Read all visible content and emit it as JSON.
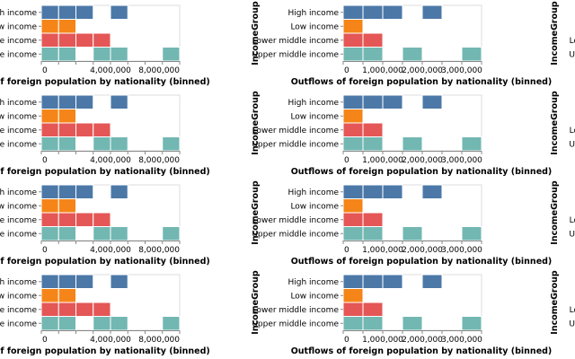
{
  "colors": {
    "High income": "#4c78a8",
    "Low income": "#f58518",
    "Lower middle income": "#e45756",
    "Upper middle income": "#72b7b2"
  },
  "chart_data": [
    {
      "type": "bar",
      "subtype": "binned-strip",
      "repeat_rows": 4,
      "xlabel": "Inflows of foreign population by nationality (binned)",
      "ylabel": "IncomeGroup",
      "categories": [
        "High income",
        "Low income",
        "Lower middle income",
        "Upper middle income"
      ],
      "xlim": [
        0,
        8000000
      ],
      "bin_step": 1000000,
      "xticks": [
        0,
        1000000,
        2000000,
        3000000,
        4000000,
        5000000,
        6000000,
        7000000,
        8000000
      ],
      "xtick_labels": [
        "0",
        "4,000,000",
        "8,000,000"
      ],
      "xtick_label_values": [
        0,
        4000000,
        8000000
      ],
      "bins": {
        "High income": [
          [
            0,
            1000000
          ],
          [
            1000000,
            2000000
          ],
          [
            2000000,
            3000000
          ],
          [
            4000000,
            5000000
          ]
        ],
        "Low income": [
          [
            0,
            1000000
          ],
          [
            1000000,
            2000000
          ]
        ],
        "Lower middle income": [
          [
            0,
            1000000
          ],
          [
            1000000,
            2000000
          ],
          [
            2000000,
            3000000
          ],
          [
            3000000,
            4000000
          ]
        ],
        "Upper middle income": [
          [
            0,
            1000000
          ],
          [
            1000000,
            2000000
          ],
          [
            3000000,
            4000000
          ],
          [
            4000000,
            5000000
          ],
          [
            7000000,
            8000000
          ]
        ]
      }
    },
    {
      "type": "bar",
      "subtype": "binned-strip",
      "repeat_rows": 4,
      "xlabel": "Outflows of foreign population by nationality (binned)",
      "ylabel": "IncomeGroup",
      "categories": [
        "High income",
        "Low income",
        "Lower middle income",
        "Upper middle income"
      ],
      "xlim": [
        0,
        3500000
      ],
      "bin_step": 500000,
      "xticks": [
        0,
        500000,
        1000000,
        1500000,
        2000000,
        2500000,
        3000000,
        3500000
      ],
      "xtick_labels": [
        "0",
        "1,000,000",
        "2,000,000",
        "3,000,000"
      ],
      "xtick_label_values": [
        0,
        1000000,
        2000000,
        3000000
      ],
      "bins": {
        "High income": [
          [
            0,
            500000
          ],
          [
            500000,
            1000000
          ],
          [
            1000000,
            1500000
          ],
          [
            2000000,
            2500000
          ]
        ],
        "Low income": [
          [
            0,
            500000
          ]
        ],
        "Lower middle income": [
          [
            0,
            500000
          ],
          [
            500000,
            1000000
          ]
        ],
        "Upper middle income": [
          [
            0,
            500000
          ],
          [
            500000,
            1000000
          ],
          [
            1500000,
            2000000
          ],
          [
            3000000,
            3500000
          ]
        ]
      }
    },
    {
      "type": "bar",
      "subtype": "binned-strip",
      "repeat_rows": 4,
      "ylabel": "IncomeGroup",
      "categories": [
        "High income",
        "Low income",
        "Lower middle income",
        "Upper middle income"
      ]
    }
  ]
}
